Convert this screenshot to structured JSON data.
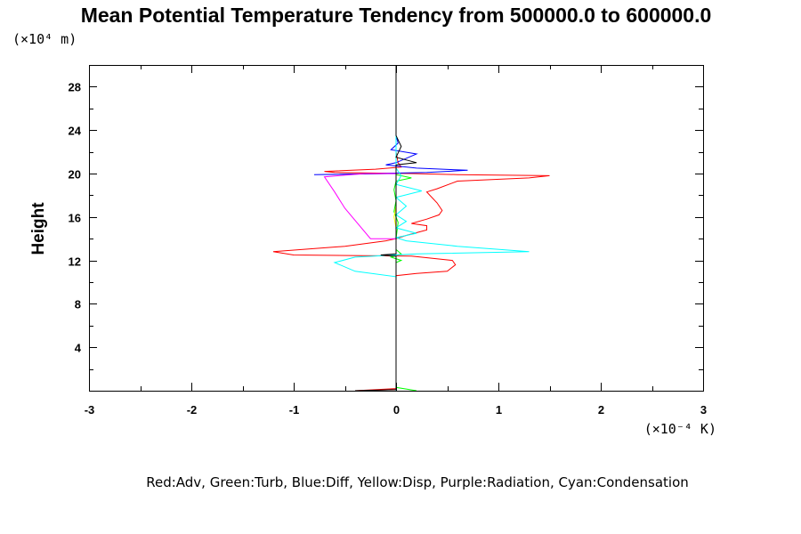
{
  "chart_data": {
    "type": "line",
    "title": "Mean Potential Temperature Tendency from 500000.0 to 600000.0",
    "y_units": "(×10⁴ m)",
    "x_units": "(×10⁻⁴ K)",
    "ylabel": "Height",
    "xlabel": "",
    "xlim": [
      -3,
      3
    ],
    "ylim": [
      0,
      30
    ],
    "x_ticks": [
      "-3",
      "-2",
      "-1",
      "0",
      "1",
      "2",
      "3"
    ],
    "y_ticks": [
      "4",
      "8",
      "12",
      "16",
      "20",
      "24",
      "28"
    ],
    "grid": false,
    "legend_text": "Red:Adv, Green:Turb, Blue:Diff, Yellow:Disp, Purple:Radiation, Cyan:Condensation",
    "series": [
      {
        "name": "Adv",
        "color": "#ff0000",
        "points": [
          [
            0,
            0.2
          ],
          [
            -0.4,
            0.0
          ],
          [
            0.0,
            0.1
          ],
          [
            0.0,
            10.0
          ],
          [
            0.0,
            10.6
          ],
          [
            0.2,
            10.8
          ],
          [
            0.5,
            11.0
          ],
          [
            0.58,
            11.6
          ],
          [
            0.55,
            12.0
          ],
          [
            0.15,
            12.4
          ],
          [
            -1.0,
            12.5
          ],
          [
            -1.2,
            12.8
          ],
          [
            -0.5,
            13.3
          ],
          [
            -0.1,
            13.8
          ],
          [
            0.0,
            14.0
          ],
          [
            0.1,
            14.3
          ],
          [
            0.3,
            14.8
          ],
          [
            0.3,
            15.2
          ],
          [
            0.15,
            15.4
          ],
          [
            0.3,
            15.8
          ],
          [
            0.42,
            16.2
          ],
          [
            0.45,
            16.6
          ],
          [
            0.4,
            17.3
          ],
          [
            0.3,
            18.3
          ],
          [
            0.4,
            18.6
          ],
          [
            0.6,
            19.3
          ],
          [
            1.3,
            19.6
          ],
          [
            1.5,
            19.8
          ],
          [
            0.6,
            19.9
          ],
          [
            0.15,
            20.0
          ],
          [
            -0.6,
            20.1
          ],
          [
            -0.7,
            20.2
          ],
          [
            -0.2,
            20.4
          ],
          [
            0.05,
            20.6
          ],
          [
            0.02,
            21.0
          ],
          [
            0.0,
            22.0
          ],
          [
            0.0,
            30.0
          ]
        ]
      },
      {
        "name": "Turb",
        "color": "#00ff00",
        "points": [
          [
            0.2,
            0.0
          ],
          [
            0.0,
            0.3
          ],
          [
            0.0,
            1.0
          ],
          [
            0.0,
            11.8
          ],
          [
            0.05,
            12.0
          ],
          [
            -0.05,
            12.3
          ],
          [
            0.05,
            12.6
          ],
          [
            0.0,
            13.0
          ],
          [
            0.0,
            14.0
          ],
          [
            0.02,
            15.5
          ],
          [
            -0.02,
            16.5
          ],
          [
            0.0,
            17.5
          ],
          [
            -0.02,
            18.5
          ],
          [
            0.0,
            19.3
          ],
          [
            0.15,
            19.6
          ],
          [
            0.0,
            19.9
          ],
          [
            0.0,
            21.0
          ],
          [
            0.0,
            30.0
          ]
        ]
      },
      {
        "name": "Diff",
        "color": "#0000ff",
        "points": [
          [
            0.0,
            0.0
          ],
          [
            0.0,
            20.0
          ],
          [
            -0.8,
            19.9
          ],
          [
            -0.2,
            20.0
          ],
          [
            0.3,
            20.1
          ],
          [
            0.7,
            20.3
          ],
          [
            0.2,
            20.5
          ],
          [
            -0.1,
            20.8
          ],
          [
            0.0,
            21.0
          ],
          [
            0.2,
            21.8
          ],
          [
            -0.05,
            22.2
          ],
          [
            0.02,
            22.8
          ],
          [
            0.0,
            23.5
          ],
          [
            0.0,
            30.0
          ]
        ]
      },
      {
        "name": "Disp",
        "color": "#ffff00",
        "points": [
          [
            0.0,
            0.0
          ],
          [
            0.0,
            15.0
          ],
          [
            -0.02,
            16.0
          ],
          [
            0.0,
            17.0
          ],
          [
            0.0,
            30.0
          ]
        ]
      },
      {
        "name": "Radiation",
        "color": "#ff00ff",
        "points": [
          [
            0.0,
            0.0
          ],
          [
            0.0,
            14.0
          ],
          [
            -0.25,
            14.0
          ],
          [
            -0.5,
            16.8
          ],
          [
            -0.6,
            18.3
          ],
          [
            -0.7,
            19.7
          ],
          [
            -0.3,
            20.0
          ],
          [
            0.0,
            20.0
          ],
          [
            0.0,
            30.0
          ]
        ]
      },
      {
        "name": "Condensation",
        "color": "#00ffff",
        "points": [
          [
            0.0,
            0.0
          ],
          [
            0.0,
            10.5
          ],
          [
            -0.4,
            11.0
          ],
          [
            -0.6,
            11.8
          ],
          [
            -0.4,
            12.3
          ],
          [
            0.2,
            12.6
          ],
          [
            1.3,
            12.8
          ],
          [
            0.6,
            13.3
          ],
          [
            0.1,
            13.8
          ],
          [
            0.0,
            14.1
          ],
          [
            0.2,
            14.5
          ],
          [
            0.0,
            15.0
          ],
          [
            0.1,
            15.6
          ],
          [
            0.0,
            16.2
          ],
          [
            0.1,
            17.0
          ],
          [
            0.0,
            17.8
          ],
          [
            0.25,
            18.4
          ],
          [
            0.0,
            19.0
          ],
          [
            0.05,
            19.8
          ],
          [
            0.0,
            20.5
          ],
          [
            0.0,
            30.0
          ]
        ]
      },
      {
        "name": "",
        "color": "#000000",
        "points": [
          [
            -0.4,
            0.0
          ],
          [
            0.0,
            0.1
          ],
          [
            0.0,
            12.4
          ],
          [
            -0.15,
            12.5
          ],
          [
            0.0,
            12.6
          ],
          [
            0.0,
            20.8
          ],
          [
            0.2,
            21.0
          ],
          [
            0.0,
            21.5
          ],
          [
            0.05,
            22.5
          ],
          [
            0.0,
            23.5
          ],
          [
            0.0,
            30.0
          ]
        ]
      }
    ]
  }
}
